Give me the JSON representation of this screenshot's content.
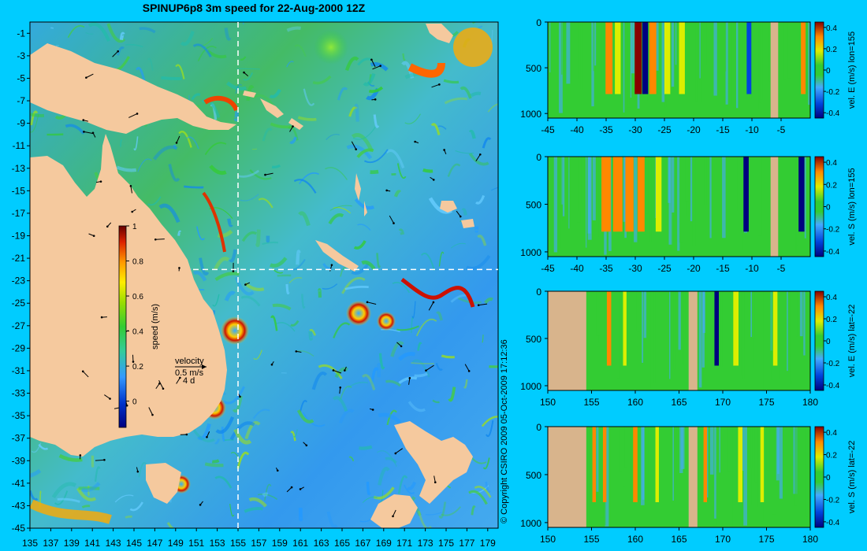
{
  "title": "SPINUP6p8 3m speed for 22-Aug-2000 12Z",
  "copyright": "© Copyright CSIRO 2009   05-Oct-2009 17:12:36",
  "colors": {
    "background": "#00ccff",
    "land": "#f5c99e",
    "section_land": "#d8b48c",
    "ocean_low": "#3399ff",
    "ocean_mid": "#33cc33",
    "ocean_high": "#cc0000"
  },
  "map": {
    "x_ticks": [
      "135",
      "137",
      "139",
      "141",
      "143",
      "145",
      "147",
      "149",
      "151",
      "153",
      "155",
      "157",
      "159",
      "161",
      "163",
      "165",
      "167",
      "169",
      "171",
      "173",
      "175",
      "177",
      "179"
    ],
    "y_ticks": [
      "-1",
      "-3",
      "-5",
      "-7",
      "-9",
      "-11",
      "-13",
      "-15",
      "-17",
      "-19",
      "-21",
      "-23",
      "-25",
      "-27",
      "-29",
      "-31",
      "-33",
      "-35",
      "-37",
      "-39",
      "-41",
      "-43",
      "-45"
    ],
    "lon_range": [
      135,
      180
    ],
    "lat_range": [
      -45,
      0
    ],
    "section_lon": 155,
    "section_lat": -22
  },
  "colorbar": {
    "label": "speed (m/s)",
    "ticks": [
      "1",
      "0.8",
      "0.6",
      "0.4",
      "0.2",
      "0"
    ]
  },
  "velocity_key": {
    "title": "velocity",
    "speed": "0.5 m/s",
    "duration": "4 d"
  },
  "sections": [
    {
      "label": "vel. E (m/s) lon=155",
      "x_ticks": [
        "-45",
        "-40",
        "-35",
        "-30",
        "-25",
        "-20",
        "-15",
        "-10",
        "-5"
      ],
      "x_range": [
        -45,
        0
      ],
      "y_ticks": [
        "0",
        "500",
        "1000"
      ],
      "y_range": [
        0,
        1050
      ],
      "cb_ticks": [
        "0.4",
        "0.2",
        "0",
        "-0.2",
        "-0.4"
      ],
      "cb_range": [
        -0.45,
        0.45
      ],
      "land": [
        {
          "from": -6.8,
          "to": -5.5,
          "depth_top": 0
        }
      ],
      "features": [
        {
          "x": -34.5,
          "w": 1.2,
          "v": 0.35
        },
        {
          "x": -33,
          "w": 1.0,
          "v": 0.25
        },
        {
          "x": -29.5,
          "w": 1.2,
          "v": 0.45
        },
        {
          "x": -28.3,
          "w": 1.0,
          "v": -0.35
        },
        {
          "x": -27,
          "w": 1.2,
          "v": 0.4
        },
        {
          "x": -24.5,
          "w": 1.0,
          "v": 0.2
        },
        {
          "x": -22,
          "w": 1.0,
          "v": 0.25
        },
        {
          "x": -10.5,
          "w": 0.8,
          "v": -0.25
        },
        {
          "x": -1.2,
          "w": 0.8,
          "v": 0.42
        }
      ]
    },
    {
      "label": "vel. S (m/s) lon=155",
      "x_ticks": [
        "-45",
        "-40",
        "-35",
        "-30",
        "-25",
        "-20",
        "-15",
        "-10",
        "-5"
      ],
      "x_range": [
        -45,
        0
      ],
      "y_ticks": [
        "0",
        "500",
        "1000"
      ],
      "y_range": [
        0,
        1050
      ],
      "cb_ticks": [
        "0.4",
        "0.2",
        "0",
        "-0.2",
        "-0.4"
      ],
      "cb_range": [
        -0.45,
        0.45
      ],
      "land": [
        {
          "from": -6.8,
          "to": -5.5,
          "depth_top": 0
        }
      ],
      "features": [
        {
          "x": -35,
          "w": 1.6,
          "v": 0.3
        },
        {
          "x": -33,
          "w": 1.6,
          "v": 0.42
        },
        {
          "x": -31,
          "w": 1.4,
          "v": 0.38
        },
        {
          "x": -29,
          "w": 1.2,
          "v": 0.3
        },
        {
          "x": -26,
          "w": 1.0,
          "v": 0.2
        },
        {
          "x": -11,
          "w": 0.9,
          "v": -0.4
        },
        {
          "x": -1.5,
          "w": 1.0,
          "v": -0.35
        }
      ]
    },
    {
      "label": "vel. E (m/s) lat=-22",
      "x_ticks": [
        "150",
        "155",
        "160",
        "165",
        "170",
        "175",
        "180"
      ],
      "x_range": [
        150,
        180
      ],
      "y_ticks": [
        "0",
        "500",
        "1000"
      ],
      "y_range": [
        0,
        1050
      ],
      "cb_ticks": [
        "0.4",
        "0.2",
        "0",
        "-0.2",
        "-0.4"
      ],
      "cb_range": [
        -0.45,
        0.45
      ],
      "land": [
        {
          "from": 150,
          "to": 154.4,
          "depth_top": 0
        },
        {
          "from": 166.1,
          "to": 167.1,
          "depth_top": 0
        }
      ],
      "features": [
        {
          "x": 157,
          "w": 0.5,
          "v": 0.3
        },
        {
          "x": 158.8,
          "w": 0.4,
          "v": 0.2
        },
        {
          "x": 169.3,
          "w": 0.5,
          "v": -0.35
        },
        {
          "x": 171.5,
          "w": 0.6,
          "v": 0.15
        },
        {
          "x": 176,
          "w": 0.5,
          "v": 0.2
        }
      ]
    },
    {
      "label": "vel. S (m/s) lat=-22",
      "x_ticks": [
        "150",
        "155",
        "160",
        "165",
        "170",
        "175",
        "180"
      ],
      "x_range": [
        150,
        180
      ],
      "y_ticks": [
        "0",
        "500",
        "1000"
      ],
      "y_range": [
        0,
        1050
      ],
      "cb_ticks": [
        "0.4",
        "0.2",
        "0",
        "-0.2",
        "-0.4"
      ],
      "cb_range": [
        -0.45,
        0.45
      ],
      "land": [
        {
          "from": 150,
          "to": 154.4,
          "depth_top": 0
        },
        {
          "from": 166.1,
          "to": 167.1,
          "depth_top": 0
        }
      ],
      "features": [
        {
          "x": 155.3,
          "w": 0.4,
          "v": 0.35
        },
        {
          "x": 156.5,
          "w": 0.4,
          "v": 0.4
        },
        {
          "x": 160,
          "w": 0.5,
          "v": 0.3
        },
        {
          "x": 162.5,
          "w": 0.4,
          "v": 0.25
        },
        {
          "x": 168,
          "w": 0.4,
          "v": 0.3
        },
        {
          "x": 172,
          "w": 0.5,
          "v": 0.2
        },
        {
          "x": 174.5,
          "w": 0.4,
          "v": 0.25
        }
      ]
    }
  ]
}
